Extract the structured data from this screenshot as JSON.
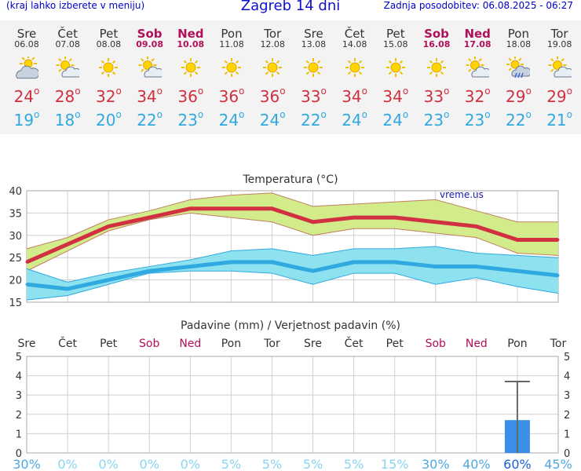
{
  "header": {
    "left_text": "(kraj lahko izberete v meniju)",
    "title": "Zagreb 14 dni",
    "updated": "Zadnja posodobitev: 06.08.2025 - 06:27"
  },
  "colors": {
    "max": "#d03040",
    "min": "#30a8e0",
    "weekend": "#b0105a",
    "rain_bar": "#3a8fe8"
  },
  "days": [
    {
      "name": "Sre",
      "date": "06.08",
      "icon": "partly-cloudy-icon",
      "max": "24",
      "min": "19",
      "weekend": false,
      "prob": "30%"
    },
    {
      "name": "Čet",
      "date": "07.08",
      "icon": "sun-cloud-icon",
      "max": "28",
      "min": "18",
      "weekend": false,
      "prob": "0%"
    },
    {
      "name": "Pet",
      "date": "08.08",
      "icon": "sun-icon",
      "max": "32",
      "min": "20",
      "weekend": false,
      "prob": "0%"
    },
    {
      "name": "Sob",
      "date": "09.08",
      "icon": "sun-cloud-icon",
      "max": "34",
      "min": "22",
      "weekend": true,
      "prob": "0%"
    },
    {
      "name": "Ned",
      "date": "10.08",
      "icon": "sun-icon",
      "max": "36",
      "min": "23",
      "weekend": true,
      "prob": "0%"
    },
    {
      "name": "Pon",
      "date": "11.08",
      "icon": "sun-icon",
      "max": "36",
      "min": "24",
      "weekend": false,
      "prob": "5%"
    },
    {
      "name": "Tor",
      "date": "12.08",
      "icon": "sun-icon",
      "max": "36",
      "min": "24",
      "weekend": false,
      "prob": "5%"
    },
    {
      "name": "Sre",
      "date": "13.08",
      "icon": "sun-icon",
      "max": "33",
      "min": "22",
      "weekend": false,
      "prob": "5%"
    },
    {
      "name": "Čet",
      "date": "14.08",
      "icon": "sun-icon",
      "max": "34",
      "min": "24",
      "weekend": false,
      "prob": "5%"
    },
    {
      "name": "Pet",
      "date": "15.08",
      "icon": "sun-icon",
      "max": "34",
      "min": "24",
      "weekend": false,
      "prob": "15%"
    },
    {
      "name": "Sob",
      "date": "16.08",
      "icon": "sun-icon",
      "max": "33",
      "min": "23",
      "weekend": true,
      "prob": "30%"
    },
    {
      "name": "Ned",
      "date": "17.08",
      "icon": "sun-cloud-icon",
      "max": "32",
      "min": "23",
      "weekend": true,
      "prob": "40%"
    },
    {
      "name": "Pon",
      "date": "18.08",
      "icon": "sun-rain-icon",
      "max": "29",
      "min": "22",
      "weekend": false,
      "prob": "60%"
    },
    {
      "name": "Tor",
      "date": "19.08",
      "icon": "sun-cloud-icon",
      "max": "29",
      "min": "21",
      "weekend": false,
      "prob": "45%"
    }
  ],
  "deg_symbol": "o",
  "chart_data": [
    {
      "type": "line",
      "title": "Temperatura (°C)",
      "watermark": "vreme.us",
      "ylim": [
        15,
        40
      ],
      "yticks": [
        "15",
        "20",
        "25",
        "30",
        "35",
        "40"
      ],
      "grid": true,
      "series": [
        {
          "values": [
            24,
            28,
            32,
            34,
            36,
            36,
            36,
            33,
            34,
            34,
            33,
            32,
            29,
            29
          ]
        },
        {
          "values": [
            27,
            29.5,
            33.5,
            35.5,
            38,
            39,
            39.5,
            36.5,
            37,
            37.5,
            38,
            35.5,
            33,
            33
          ]
        },
        {
          "values": [
            22,
            26.5,
            31,
            33.5,
            35,
            34,
            33,
            30,
            31.5,
            31.5,
            30.5,
            29.5,
            26,
            25.5
          ]
        },
        {
          "values": [
            19,
            18,
            20,
            22,
            23,
            24,
            24,
            22,
            24,
            24,
            23,
            23,
            22,
            21
          ]
        },
        {
          "values": [
            22.5,
            19.5,
            21.5,
            23,
            24.5,
            26.5,
            27,
            25.5,
            27,
            27,
            27.5,
            26,
            25.5,
            25
          ]
        },
        {
          "values": [
            15.5,
            16.5,
            19,
            21.5,
            22,
            22,
            21.5,
            19,
            21.5,
            21.5,
            19,
            20.5,
            18.5,
            17
          ]
        }
      ]
    },
    {
      "type": "bar",
      "title": "Padavine (mm) / Verjetnost padavin (%)",
      "ylim": [
        0,
        5
      ],
      "yticks": [
        "0",
        "1",
        "2",
        "3",
        "4",
        "5"
      ],
      "grid": true,
      "precip_mm": [
        0,
        0,
        0,
        0,
        0,
        0,
        0,
        0,
        0,
        0,
        0,
        0,
        1.7,
        0
      ],
      "precip_max_mm": [
        0,
        0,
        0,
        0,
        0,
        0,
        0,
        0,
        0,
        0,
        0,
        0,
        3.7,
        0
      ],
      "probability": [
        "30%",
        "0%",
        "0%",
        "0%",
        "0%",
        "5%",
        "5%",
        "5%",
        "5%",
        "15%",
        "30%",
        "40%",
        "60%",
        "45%"
      ]
    }
  ]
}
